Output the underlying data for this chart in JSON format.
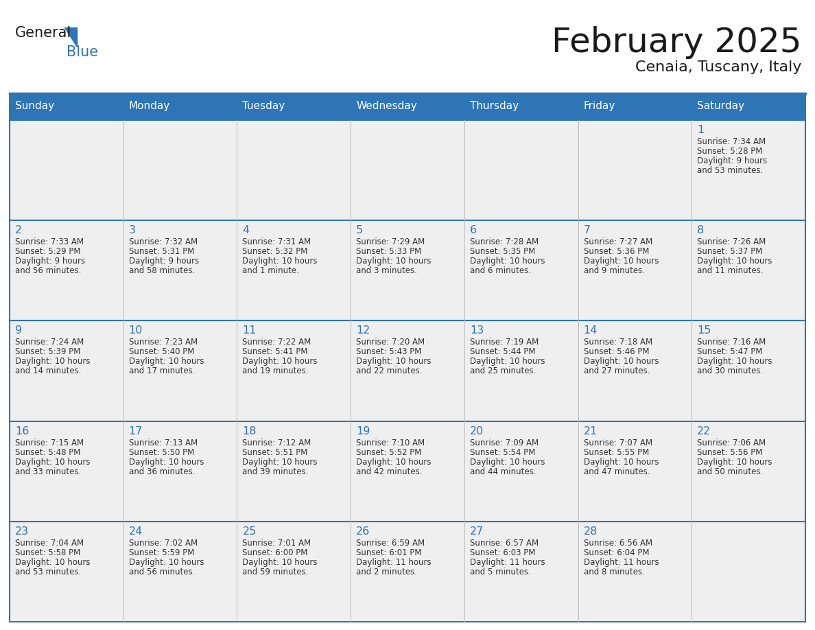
{
  "title": "February 2025",
  "subtitle": "Cenaia, Tuscany, Italy",
  "header_bg": "#2E75B6",
  "header_text": "#FFFFFF",
  "cell_bg": "#EFEFEF",
  "border_color": "#2E75B6",
  "thin_border": "#AAAAAA",
  "day_names": [
    "Sunday",
    "Monday",
    "Tuesday",
    "Wednesday",
    "Thursday",
    "Friday",
    "Saturday"
  ],
  "title_color": "#1a1a1a",
  "subtitle_color": "#1a1a1a",
  "day_num_color": "#2E75B6",
  "cell_text_color": "#333333",
  "logo_general_color": "#1a1a1a",
  "logo_blue_color": "#2E75B6",
  "calendar": [
    [
      null,
      null,
      null,
      null,
      null,
      null,
      {
        "day": 1,
        "lines": [
          "Sunrise: 7:34 AM",
          "Sunset: 5:28 PM",
          "Daylight: 9 hours",
          "and 53 minutes."
        ]
      }
    ],
    [
      {
        "day": 2,
        "lines": [
          "Sunrise: 7:33 AM",
          "Sunset: 5:29 PM",
          "Daylight: 9 hours",
          "and 56 minutes."
        ]
      },
      {
        "day": 3,
        "lines": [
          "Sunrise: 7:32 AM",
          "Sunset: 5:31 PM",
          "Daylight: 9 hours",
          "and 58 minutes."
        ]
      },
      {
        "day": 4,
        "lines": [
          "Sunrise: 7:31 AM",
          "Sunset: 5:32 PM",
          "Daylight: 10 hours",
          "and 1 minute."
        ]
      },
      {
        "day": 5,
        "lines": [
          "Sunrise: 7:29 AM",
          "Sunset: 5:33 PM",
          "Daylight: 10 hours",
          "and 3 minutes."
        ]
      },
      {
        "day": 6,
        "lines": [
          "Sunrise: 7:28 AM",
          "Sunset: 5:35 PM",
          "Daylight: 10 hours",
          "and 6 minutes."
        ]
      },
      {
        "day": 7,
        "lines": [
          "Sunrise: 7:27 AM",
          "Sunset: 5:36 PM",
          "Daylight: 10 hours",
          "and 9 minutes."
        ]
      },
      {
        "day": 8,
        "lines": [
          "Sunrise: 7:26 AM",
          "Sunset: 5:37 PM",
          "Daylight: 10 hours",
          "and 11 minutes."
        ]
      }
    ],
    [
      {
        "day": 9,
        "lines": [
          "Sunrise: 7:24 AM",
          "Sunset: 5:39 PM",
          "Daylight: 10 hours",
          "and 14 minutes."
        ]
      },
      {
        "day": 10,
        "lines": [
          "Sunrise: 7:23 AM",
          "Sunset: 5:40 PM",
          "Daylight: 10 hours",
          "and 17 minutes."
        ]
      },
      {
        "day": 11,
        "lines": [
          "Sunrise: 7:22 AM",
          "Sunset: 5:41 PM",
          "Daylight: 10 hours",
          "and 19 minutes."
        ]
      },
      {
        "day": 12,
        "lines": [
          "Sunrise: 7:20 AM",
          "Sunset: 5:43 PM",
          "Daylight: 10 hours",
          "and 22 minutes."
        ]
      },
      {
        "day": 13,
        "lines": [
          "Sunrise: 7:19 AM",
          "Sunset: 5:44 PM",
          "Daylight: 10 hours",
          "and 25 minutes."
        ]
      },
      {
        "day": 14,
        "lines": [
          "Sunrise: 7:18 AM",
          "Sunset: 5:46 PM",
          "Daylight: 10 hours",
          "and 27 minutes."
        ]
      },
      {
        "day": 15,
        "lines": [
          "Sunrise: 7:16 AM",
          "Sunset: 5:47 PM",
          "Daylight: 10 hours",
          "and 30 minutes."
        ]
      }
    ],
    [
      {
        "day": 16,
        "lines": [
          "Sunrise: 7:15 AM",
          "Sunset: 5:48 PM",
          "Daylight: 10 hours",
          "and 33 minutes."
        ]
      },
      {
        "day": 17,
        "lines": [
          "Sunrise: 7:13 AM",
          "Sunset: 5:50 PM",
          "Daylight: 10 hours",
          "and 36 minutes."
        ]
      },
      {
        "day": 18,
        "lines": [
          "Sunrise: 7:12 AM",
          "Sunset: 5:51 PM",
          "Daylight: 10 hours",
          "and 39 minutes."
        ]
      },
      {
        "day": 19,
        "lines": [
          "Sunrise: 7:10 AM",
          "Sunset: 5:52 PM",
          "Daylight: 10 hours",
          "and 42 minutes."
        ]
      },
      {
        "day": 20,
        "lines": [
          "Sunrise: 7:09 AM",
          "Sunset: 5:54 PM",
          "Daylight: 10 hours",
          "and 44 minutes."
        ]
      },
      {
        "day": 21,
        "lines": [
          "Sunrise: 7:07 AM",
          "Sunset: 5:55 PM",
          "Daylight: 10 hours",
          "and 47 minutes."
        ]
      },
      {
        "day": 22,
        "lines": [
          "Sunrise: 7:06 AM",
          "Sunset: 5:56 PM",
          "Daylight: 10 hours",
          "and 50 minutes."
        ]
      }
    ],
    [
      {
        "day": 23,
        "lines": [
          "Sunrise: 7:04 AM",
          "Sunset: 5:58 PM",
          "Daylight: 10 hours",
          "and 53 minutes."
        ]
      },
      {
        "day": 24,
        "lines": [
          "Sunrise: 7:02 AM",
          "Sunset: 5:59 PM",
          "Daylight: 10 hours",
          "and 56 minutes."
        ]
      },
      {
        "day": 25,
        "lines": [
          "Sunrise: 7:01 AM",
          "Sunset: 6:00 PM",
          "Daylight: 10 hours",
          "and 59 minutes."
        ]
      },
      {
        "day": 26,
        "lines": [
          "Sunrise: 6:59 AM",
          "Sunset: 6:01 PM",
          "Daylight: 11 hours",
          "and 2 minutes."
        ]
      },
      {
        "day": 27,
        "lines": [
          "Sunrise: 6:57 AM",
          "Sunset: 6:03 PM",
          "Daylight: 11 hours",
          "and 5 minutes."
        ]
      },
      {
        "day": 28,
        "lines": [
          "Sunrise: 6:56 AM",
          "Sunset: 6:04 PM",
          "Daylight: 11 hours",
          "and 8 minutes."
        ]
      },
      null
    ]
  ]
}
